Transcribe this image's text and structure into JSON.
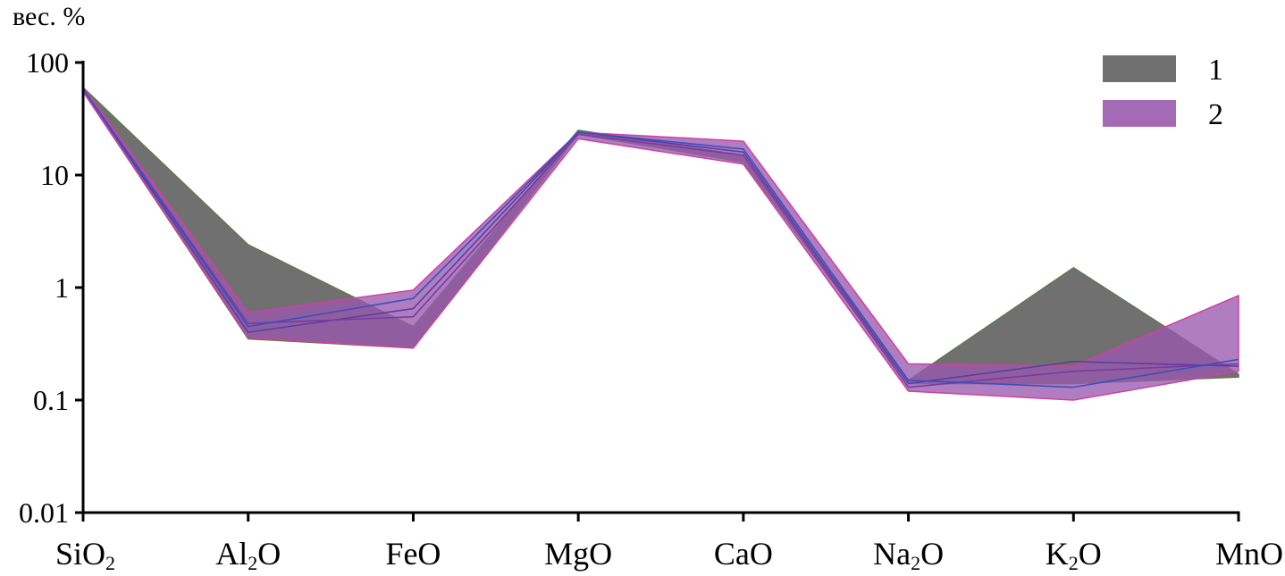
{
  "chart_data": {
    "type": "area",
    "ylabel": "вес. %",
    "yscale": "log",
    "ylim": [
      0.01,
      100
    ],
    "yticks": [
      {
        "value": 100,
        "label": "100"
      },
      {
        "value": 10,
        "label": "10"
      },
      {
        "value": 1,
        "label": "1"
      },
      {
        "value": 0.1,
        "label": "0.1"
      },
      {
        "value": 0.01,
        "label": "0.01"
      }
    ],
    "categories": [
      {
        "base": "SiO",
        "sub": "2"
      },
      {
        "base": "Al",
        "sub": "2",
        "tail": "O"
      },
      {
        "base": "FeO"
      },
      {
        "base": "MgO"
      },
      {
        "base": "CaO"
      },
      {
        "base": "Na",
        "sub": "2",
        "tail": "O"
      },
      {
        "base": "K",
        "sub": "2",
        "tail": "O"
      },
      {
        "base": "MnO"
      }
    ],
    "legend_position": "top-right",
    "series": [
      {
        "name": "1",
        "color": "#707070",
        "edge": "#5d7a4e",
        "upper": [
          60,
          2.4,
          0.45,
          25,
          15,
          0.15,
          1.5,
          0.17
        ],
        "lower": [
          55,
          0.35,
          0.29,
          23,
          13,
          0.14,
          0.14,
          0.16
        ],
        "lines": []
      },
      {
        "name": "2",
        "color": "#9a5aae",
        "edge": "#d040a0",
        "upper": [
          60,
          0.6,
          0.95,
          24,
          20,
          0.21,
          0.2,
          0.85
        ],
        "lower": [
          55,
          0.36,
          0.29,
          21,
          12.5,
          0.12,
          0.1,
          0.18
        ],
        "lines": [
          {
            "color": "#5a3fa0",
            "values": [
              58,
              0.4,
              0.65,
              24,
              16,
              0.14,
              0.22,
              0.2
            ]
          },
          {
            "color": "#7a3aa0",
            "values": [
              58,
              0.48,
              0.55,
              23,
              15,
              0.13,
              0.18,
              0.21
            ]
          },
          {
            "color": "#3a4fc0",
            "values": [
              58,
              0.45,
              0.8,
              24,
              17,
              0.15,
              0.13,
              0.23
            ]
          }
        ]
      }
    ]
  }
}
